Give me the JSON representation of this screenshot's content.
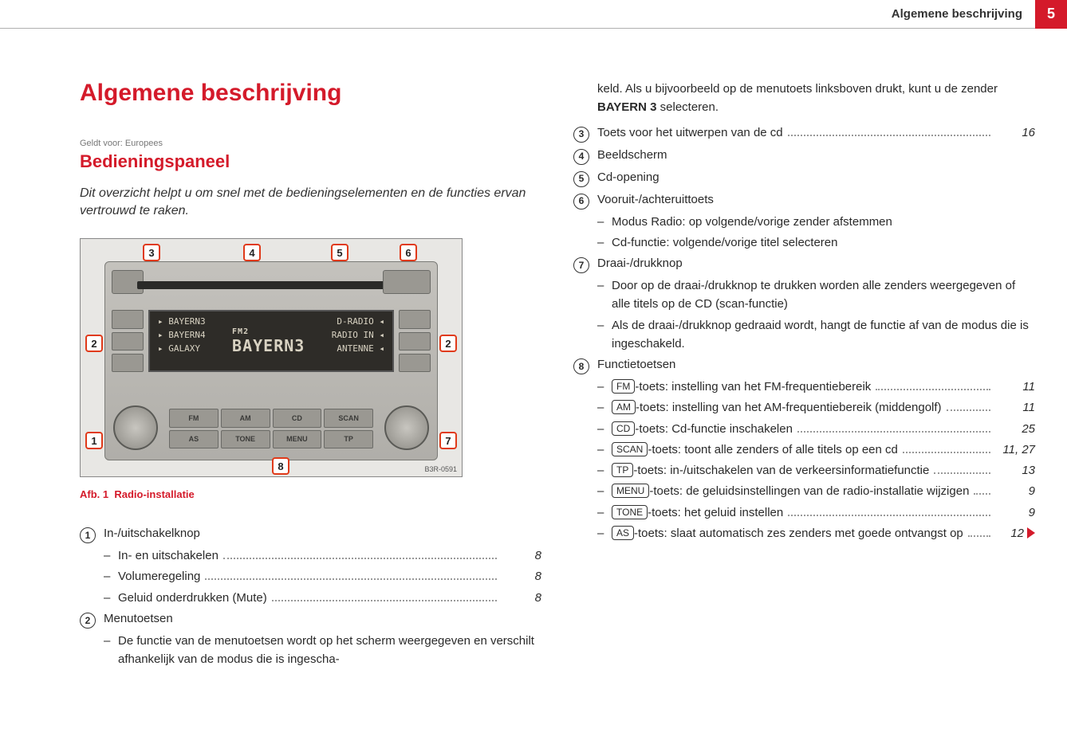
{
  "header": {
    "section_title": "Algemene beschrijving",
    "page_number": "5"
  },
  "title": "Algemene beschrijving",
  "applies_to": "Geldt voor: Europees",
  "subtitle": "Bedieningspaneel",
  "intro": "Dit overzicht helpt u om snel met de bedieningselementen en de functies ervan vertrouwd te raken.",
  "figure": {
    "caption_prefix": "Afb. 1",
    "caption_text": "Radio-installatie",
    "image_code": "B3R-0591",
    "lcd": {
      "left": [
        "▸ BAYERN3",
        "▸ BAYERN4",
        "▸ GALAXY"
      ],
      "center_top": "FM2",
      "center": "BAYERN3",
      "right": [
        "D-RADIO ◂",
        "RADIO IN ◂",
        "ANTENNE ◂"
      ]
    },
    "fn_buttons": [
      "FM",
      "AM",
      "CD",
      "SCAN",
      "AS",
      "TONE",
      "MENU",
      "TP"
    ],
    "callouts": [
      "1",
      "2",
      "3",
      "4",
      "5",
      "6",
      "7",
      "8"
    ]
  },
  "col_left_items": [
    {
      "num": "1",
      "title": "In-/uitschakelknop",
      "subs": [
        {
          "text": "In- en uitschakelen",
          "page": "8"
        },
        {
          "text": "Volumeregeling",
          "page": "8"
        },
        {
          "text": "Geluid onderdrukken (Mute)",
          "page": "8"
        }
      ]
    },
    {
      "num": "2",
      "title": "Menutoetsen",
      "subs": [
        {
          "text": "De functie van de menutoetsen wordt op het scherm weergegeven en verschilt afhankelijk van de modus die is ingescha-",
          "page": ""
        }
      ]
    }
  ],
  "col_right_top_continuation": {
    "text_pre": "keld. Als u bijvoorbeeld op de menutoets linksboven drukt, kunt u de zender ",
    "bold": "BAYERN 3",
    "text_post": " selecteren."
  },
  "col_right_items": [
    {
      "num": "3",
      "title": "Toets voor het uitwerpen van de cd",
      "page": "16",
      "subs": []
    },
    {
      "num": "4",
      "title": "Beeldscherm",
      "page": "",
      "subs": []
    },
    {
      "num": "5",
      "title": "Cd-opening",
      "page": "",
      "subs": []
    },
    {
      "num": "6",
      "title": "Vooruit-/achteruittoets",
      "page": "",
      "subs": [
        {
          "text": "Modus Radio: op volgende/vorige zender afstemmen",
          "page": ""
        },
        {
          "text": "Cd-functie: volgende/vorige titel selecteren",
          "page": ""
        }
      ]
    },
    {
      "num": "7",
      "title": "Draai-/drukknop",
      "page": "",
      "subs": [
        {
          "text": "Door op de draai-/drukknop te drukken worden alle zenders weergegeven of alle titels op de CD (scan-functie)",
          "page": ""
        },
        {
          "text": "Als de draai-/drukknop gedraaid wordt, hangt de functie af van de modus die is ingeschakeld.",
          "page": ""
        }
      ]
    },
    {
      "num": "8",
      "title": "Functietoetsen",
      "page": "",
      "subs": [
        {
          "key": "FM",
          "text": "-toets: instelling van het FM-frequentiebereik",
          "page": "11"
        },
        {
          "key": "AM",
          "text": "-toets: instelling van het AM-frequentiebereik (middengolf)",
          "page": "11"
        },
        {
          "key": "CD",
          "text": "-toets: Cd-functie inschakelen",
          "page": "25"
        },
        {
          "key": "SCAN",
          "text": "-toets: toont alle zenders of alle titels op een cd",
          "page": "11, 27"
        },
        {
          "key": "TP",
          "text": "-toets: in-/uitschakelen van de verkeersinformatiefunctie",
          "page": "13"
        },
        {
          "key": "MENU",
          "text": "-toets: de geluidsinstellingen van de radio-installatie wijzigen",
          "page": "9"
        },
        {
          "key": "TONE",
          "text": "-toets: het geluid instellen",
          "page": "9"
        },
        {
          "key": "AS",
          "text": "-toets: slaat automatisch zes zenders met goede ontvangst op",
          "page": "12",
          "cont": true
        }
      ]
    }
  ],
  "colors": {
    "accent": "#d41a2a"
  }
}
